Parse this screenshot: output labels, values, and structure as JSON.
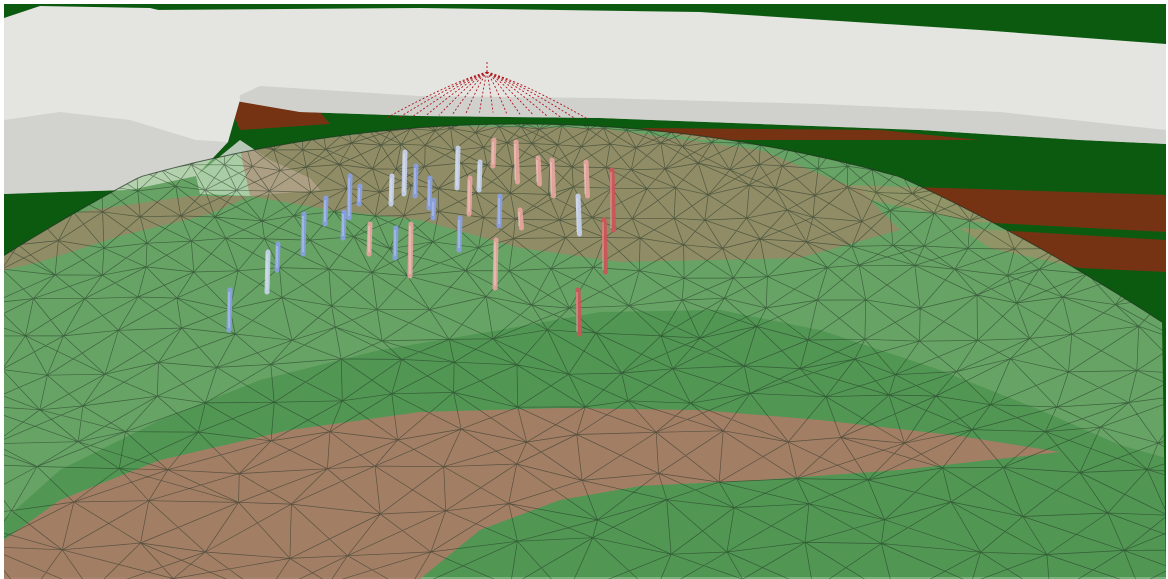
{
  "scene": {
    "colors": {
      "ground": "#0c5a10",
      "ground_dark": "#0a4a0c",
      "strata_red": "#8a2d14",
      "salmon_layer": "#b07a68",
      "dome_fill": "#9fd09a",
      "dome_inner": "#3f8c46",
      "mesh_line": "#1d2e20",
      "rock": "#e4e4e0",
      "rock_shadow": "#c3c3bf",
      "wellhead": "#b0141c",
      "well_blue": "#8aa0e6",
      "well_pink": "#e8a6a0",
      "well_red": "#d05458",
      "well_light": "#c8d4f0"
    }
  }
}
